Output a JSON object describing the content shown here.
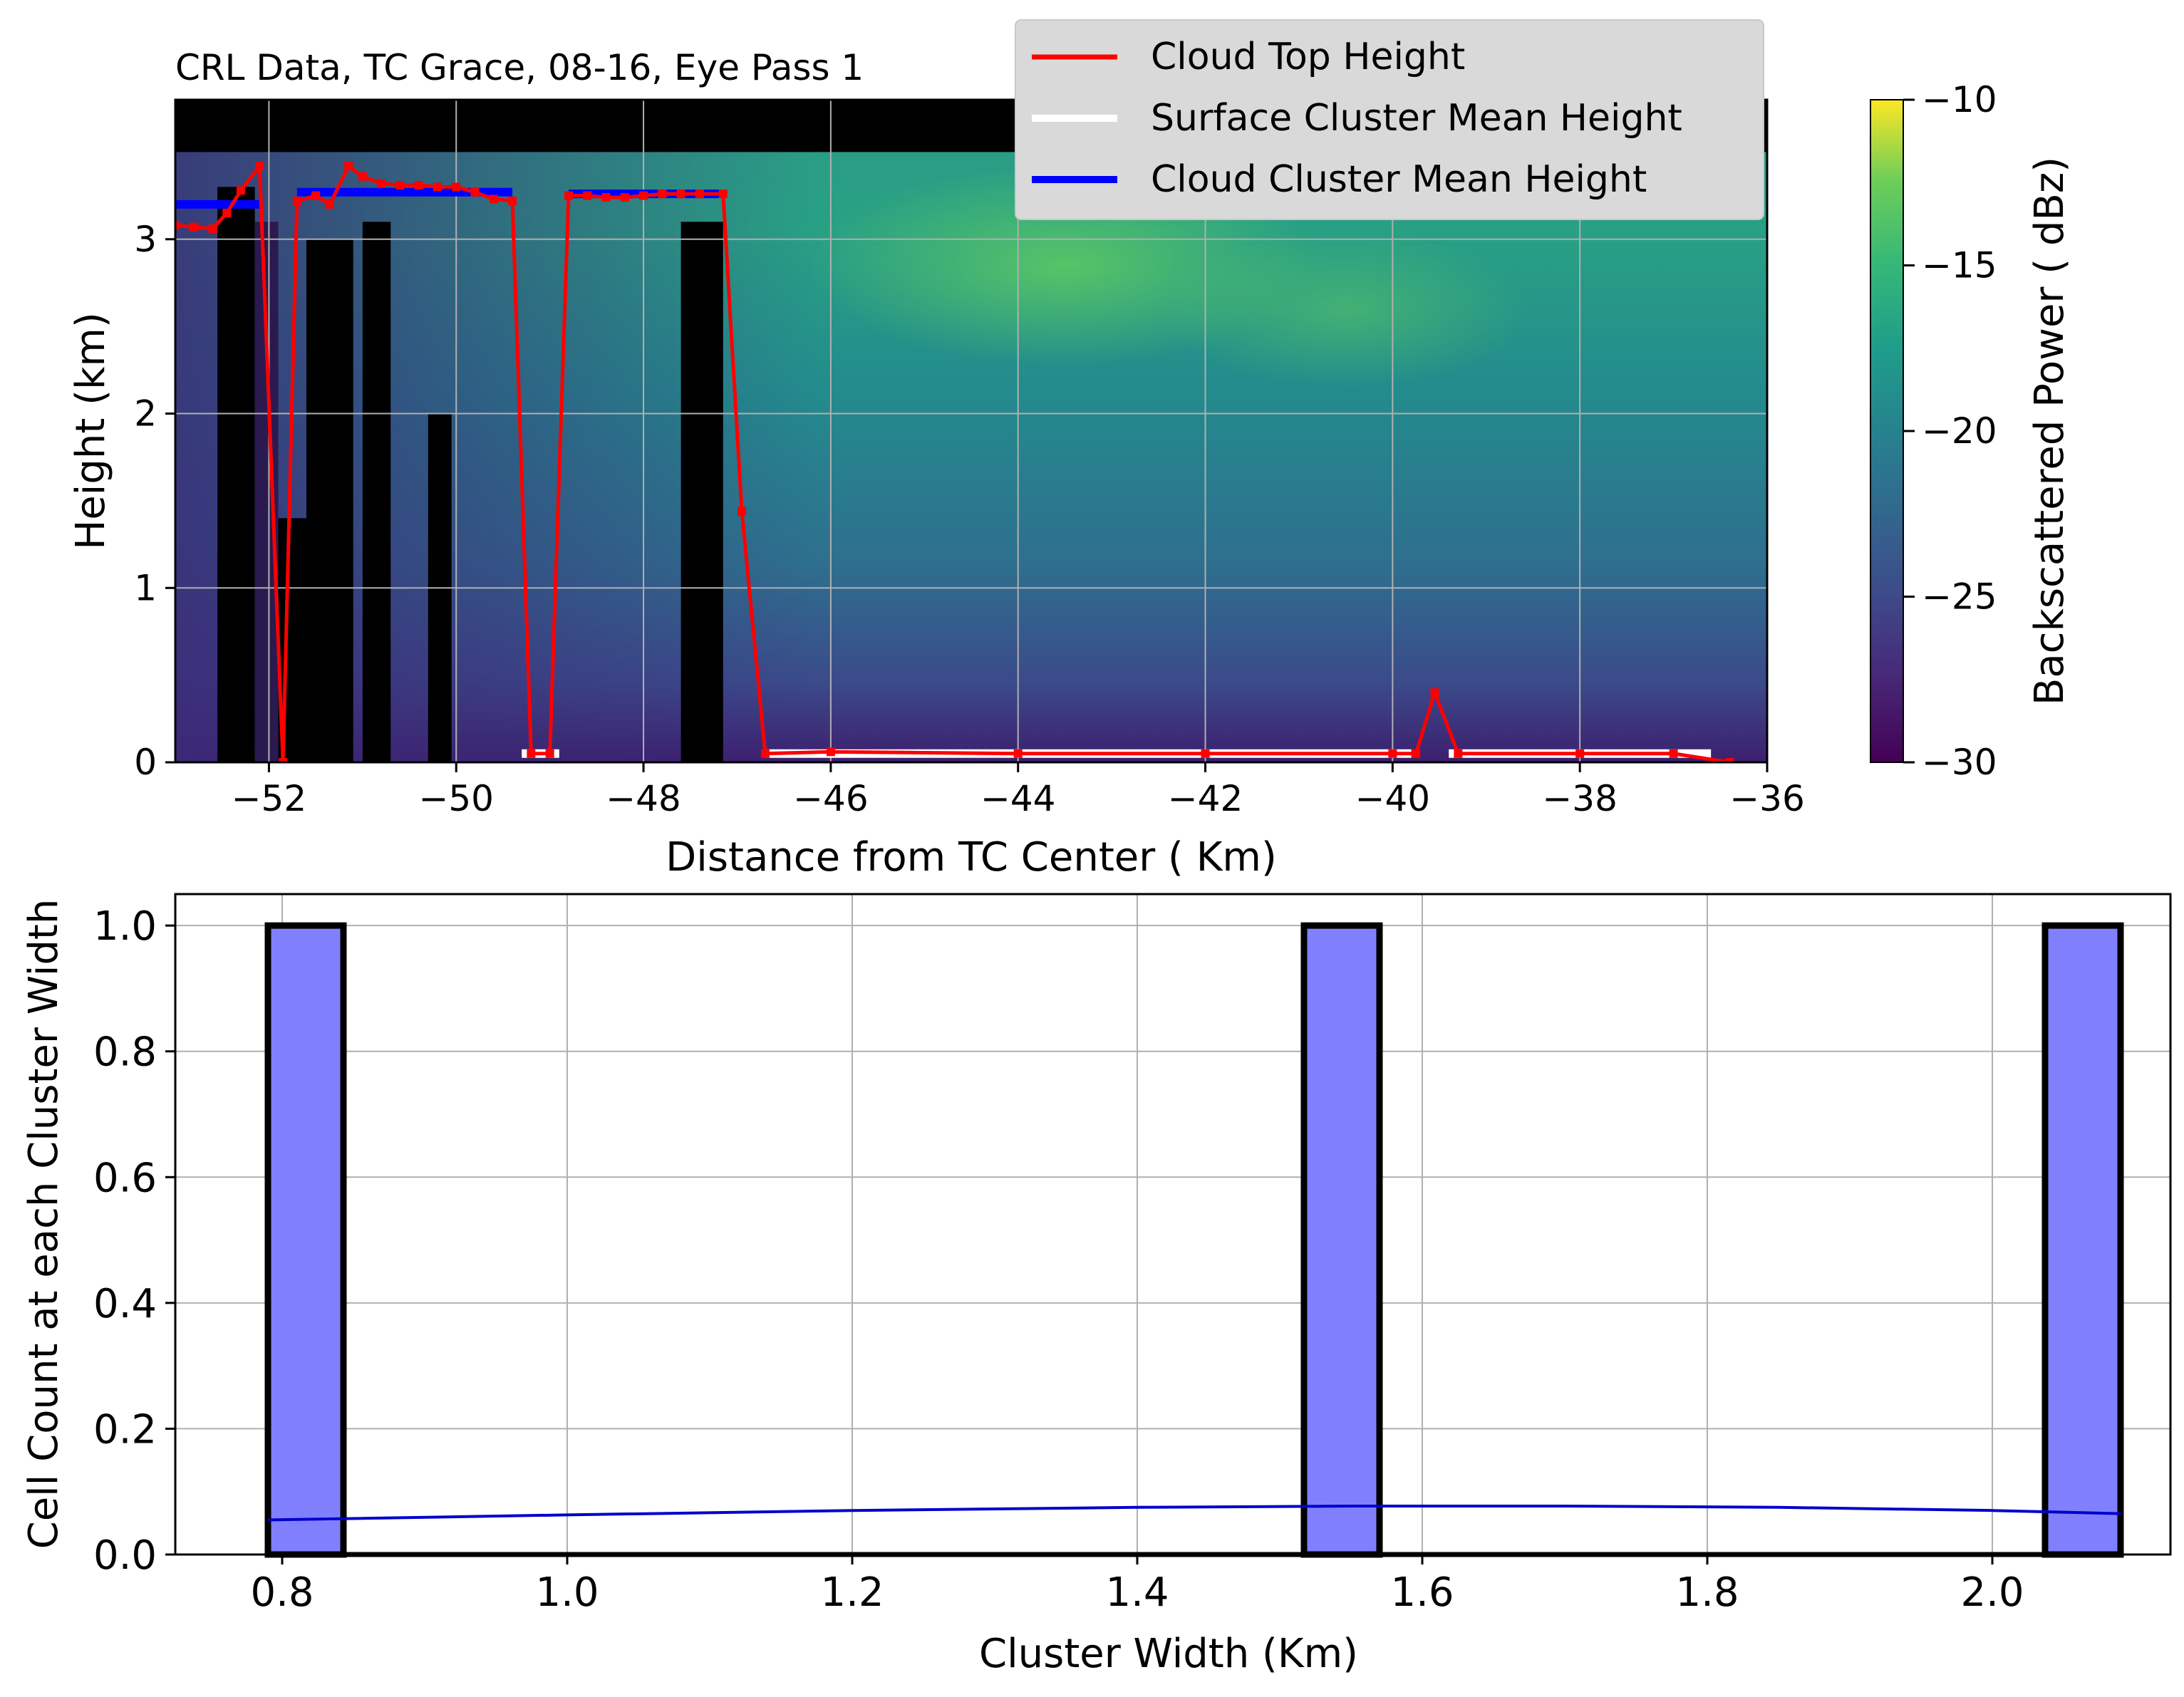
{
  "chart_data": [
    {
      "type": "heatmap",
      "title": "CRL Data, TC Grace, 08-16, Eye Pass 1",
      "xlabel": "Distance from TC Center ( Km)",
      "ylabel": "Height (km)",
      "xlim": [
        -53,
        -36
      ],
      "ylim": [
        0,
        3.8
      ],
      "xticks": [
        "−52",
        "−50",
        "−48",
        "−46",
        "−44",
        "−42",
        "−40",
        "−38",
        "−36"
      ],
      "xtick_values": [
        -52,
        -50,
        -48,
        -46,
        -44,
        -42,
        -40,
        -38,
        -36
      ],
      "yticks": [
        "0",
        "1",
        "2",
        "3"
      ],
      "ytick_values": [
        0,
        1,
        2,
        3
      ],
      "grid": true,
      "colormap": "viridis",
      "colorbar": {
        "label": "Backscattered Power ( dBz)",
        "min": -30,
        "max": -10,
        "ticks": [
          "−10",
          "−15",
          "−20",
          "−25",
          "−30"
        ],
        "tick_values": [
          -10,
          -15,
          -20,
          -25,
          -30
        ]
      },
      "legend": {
        "placement": "top-right",
        "entries": [
          {
            "label": "Cloud Top Height",
            "color": "#ff0000"
          },
          {
            "label": "Surface Cluster Mean Height",
            "color": "#ffffff"
          },
          {
            "label": "Cloud Cluster Mean Height",
            "color": "#0000ff"
          }
        ]
      },
      "series": [
        {
          "name": "Cloud Top Height",
          "color": "#ff0000",
          "points": [
            [
              -53.0,
              3.08
            ],
            [
              -52.8,
              3.07
            ],
            [
              -52.6,
              3.06
            ],
            [
              -52.45,
              3.15
            ],
            [
              -52.3,
              3.28
            ],
            [
              -52.1,
              3.42
            ],
            [
              -51.85,
              0.0
            ],
            [
              -51.7,
              3.22
            ],
            [
              -51.5,
              3.25
            ],
            [
              -51.35,
              3.2
            ],
            [
              -51.15,
              3.42
            ],
            [
              -51.0,
              3.36
            ],
            [
              -50.8,
              3.32
            ],
            [
              -50.6,
              3.31
            ],
            [
              -50.4,
              3.31
            ],
            [
              -50.2,
              3.3
            ],
            [
              -50.0,
              3.3
            ],
            [
              -49.8,
              3.27
            ],
            [
              -49.6,
              3.23
            ],
            [
              -49.4,
              3.22
            ],
            [
              -49.2,
              0.05
            ],
            [
              -49.0,
              0.05
            ],
            [
              -48.8,
              3.25
            ],
            [
              -48.6,
              3.25
            ],
            [
              -48.4,
              3.24
            ],
            [
              -48.2,
              3.24
            ],
            [
              -48.0,
              3.25
            ],
            [
              -47.8,
              3.26
            ],
            [
              -47.6,
              3.26
            ],
            [
              -47.4,
              3.26
            ],
            [
              -47.15,
              3.26
            ],
            [
              -46.95,
              1.44
            ],
            [
              -46.7,
              0.05
            ],
            [
              -46.0,
              0.06
            ],
            [
              -44.0,
              0.05
            ],
            [
              -42.0,
              0.05
            ],
            [
              -40.0,
              0.05
            ],
            [
              -39.75,
              0.05
            ],
            [
              -39.55,
              0.4
            ],
            [
              -39.3,
              0.05
            ],
            [
              -38.0,
              0.05
            ],
            [
              -37.0,
              0.05
            ],
            [
              -36.4,
              0.0
            ]
          ]
        },
        {
          "name": "Surface Cluster Mean Height",
          "color": "#ffffff",
          "segments": [
            [
              -49.3,
              -48.9,
              0.05
            ],
            [
              -46.7,
              -39.8,
              0.05
            ],
            [
              -39.4,
              -36.6,
              0.05
            ]
          ]
        },
        {
          "name": "Cloud Cluster Mean Height",
          "color": "#0000ff",
          "segments": [
            [
              -53.0,
              -52.1,
              3.2
            ],
            [
              -51.7,
              -49.4,
              3.27
            ],
            [
              -48.8,
              -47.15,
              3.26
            ]
          ]
        }
      ]
    },
    {
      "type": "bar",
      "xlabel": "Cluster Width (Km)",
      "ylabel": "Cell Count at each Cluster Width",
      "xlim": [
        0.725,
        2.125
      ],
      "ylim": [
        0,
        1.05
      ],
      "xticks": [
        "0.8",
        "1.0",
        "1.2",
        "1.4",
        "1.6",
        "1.8",
        "2.0"
      ],
      "xtick_values": [
        0.8,
        1.0,
        1.2,
        1.4,
        1.6,
        1.8,
        2.0
      ],
      "yticks": [
        "0.0",
        "0.2",
        "0.4",
        "0.6",
        "0.8",
        "1.0"
      ],
      "ytick_values": [
        0.0,
        0.2,
        0.4,
        0.6,
        0.8,
        1.0
      ],
      "grid": true,
      "bar_color": "#8080ff",
      "edge_color": "#000000",
      "bars": [
        {
          "x0": 0.79,
          "x1": 0.843,
          "value": 1
        },
        {
          "x0": 1.517,
          "x1": 1.57,
          "value": 1
        },
        {
          "x0": 2.037,
          "x1": 2.09,
          "value": 1
        }
      ],
      "kde": {
        "color": "#0000cc",
        "x": [
          0.79,
          1.0,
          1.2,
          1.4,
          1.55,
          1.7,
          1.85,
          2.0,
          2.09
        ],
        "y": [
          0.055,
          0.063,
          0.07,
          0.075,
          0.077,
          0.077,
          0.075,
          0.07,
          0.065
        ]
      }
    }
  ]
}
